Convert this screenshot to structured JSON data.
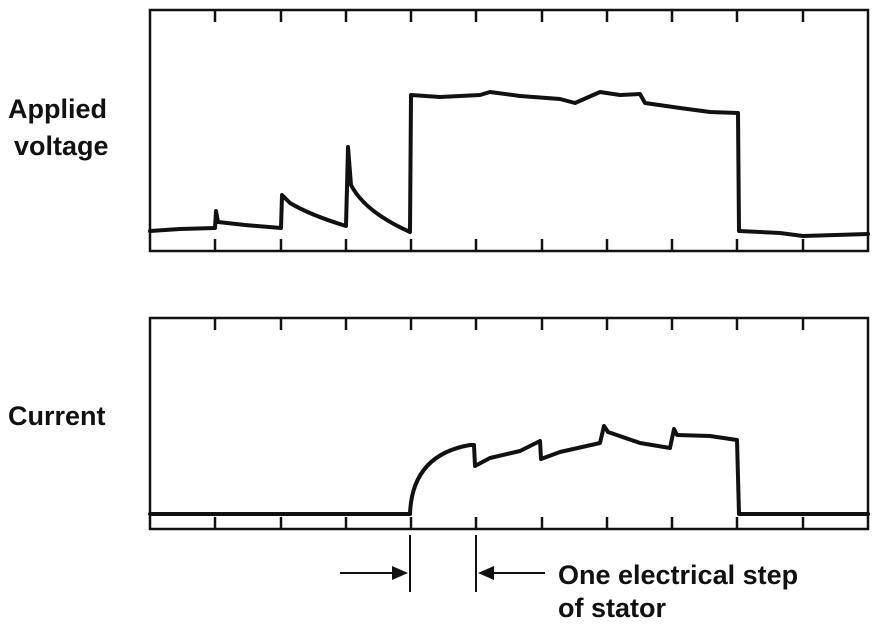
{
  "labels": {
    "top_line1": "Applied",
    "top_line2": "voltage",
    "bottom": "Current",
    "step_line1": "One electrical step",
    "step_line2": "of stator"
  },
  "colors": {
    "ink": "#111111",
    "background": "#ffffff"
  }
}
